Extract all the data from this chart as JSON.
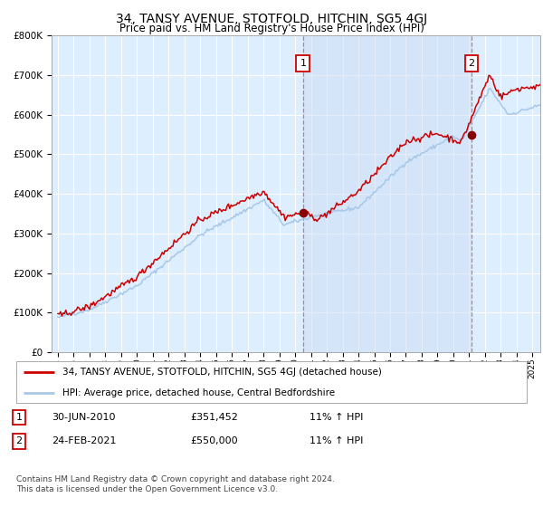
{
  "title": "34, TANSY AVENUE, STOTFOLD, HITCHIN, SG5 4GJ",
  "subtitle": "Price paid vs. HM Land Registry's House Price Index (HPI)",
  "ylabel_ticks": [
    "£0",
    "£100K",
    "£200K",
    "£300K",
    "£400K",
    "£500K",
    "£600K",
    "£700K",
    "£800K"
  ],
  "ylim": [
    0,
    800000
  ],
  "ytick_vals": [
    0,
    100000,
    200000,
    300000,
    400000,
    500000,
    600000,
    700000,
    800000
  ],
  "xtick_years": [
    1995,
    1996,
    1997,
    1998,
    1999,
    2000,
    2001,
    2002,
    2003,
    2004,
    2005,
    2006,
    2007,
    2008,
    2009,
    2010,
    2011,
    2012,
    2013,
    2014,
    2015,
    2016,
    2017,
    2018,
    2019,
    2020,
    2021,
    2022,
    2023,
    2024,
    2025
  ],
  "marker1_x": 2010.5,
  "marker1_y": 351452,
  "marker2_x": 2021.15,
  "marker2_y": 550000,
  "hpi_color": "#a8c8e8",
  "price_color": "#cc0000",
  "dashed_color": "#cc6666",
  "bg_plot_color": "#ddeeff",
  "bg_shaded_color": "#ccddf5",
  "grid_color": "#ffffff",
  "legend_label_red": "34, TANSY AVENUE, STOTFOLD, HITCHIN, SG5 4GJ (detached house)",
  "legend_label_blue": "HPI: Average price, detached house, Central Bedfordshire",
  "table_row1": [
    "1",
    "30-JUN-2010",
    "£351,452",
    "11% ↑ HPI"
  ],
  "table_row2": [
    "2",
    "24-FEB-2021",
    "£550,000",
    "11% ↑ HPI"
  ],
  "footer": "Contains HM Land Registry data © Crown copyright and database right 2024.\nThis data is licensed under the Open Government Licence v3.0."
}
